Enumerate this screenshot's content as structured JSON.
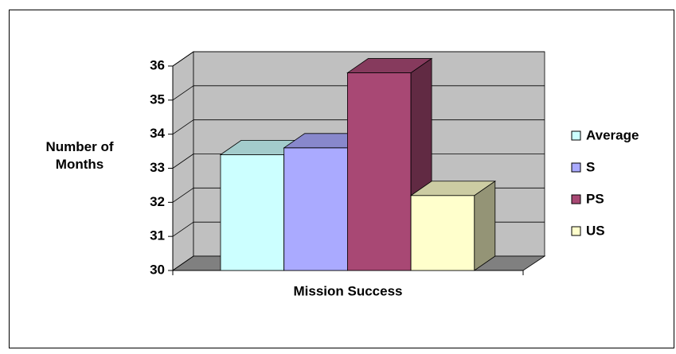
{
  "chart_data": {
    "type": "bar3d",
    "y_label": "Number of Months",
    "categories": [
      "Mission Success"
    ],
    "series": [
      {
        "name": "Average",
        "color": "#ccffff",
        "values": [
          33.4
        ]
      },
      {
        "name": "S",
        "color": "#aaaaff",
        "values": [
          33.6
        ]
      },
      {
        "name": "PS",
        "color": "#a84874",
        "values": [
          35.8
        ]
      },
      {
        "name": "US",
        "color": "#ffffcc",
        "values": [
          32.2
        ]
      }
    ],
    "ylim": [
      30,
      36
    ],
    "yticks": [
      30,
      31,
      32,
      33,
      34,
      35,
      36
    ],
    "grid": true,
    "legend": "right"
  }
}
